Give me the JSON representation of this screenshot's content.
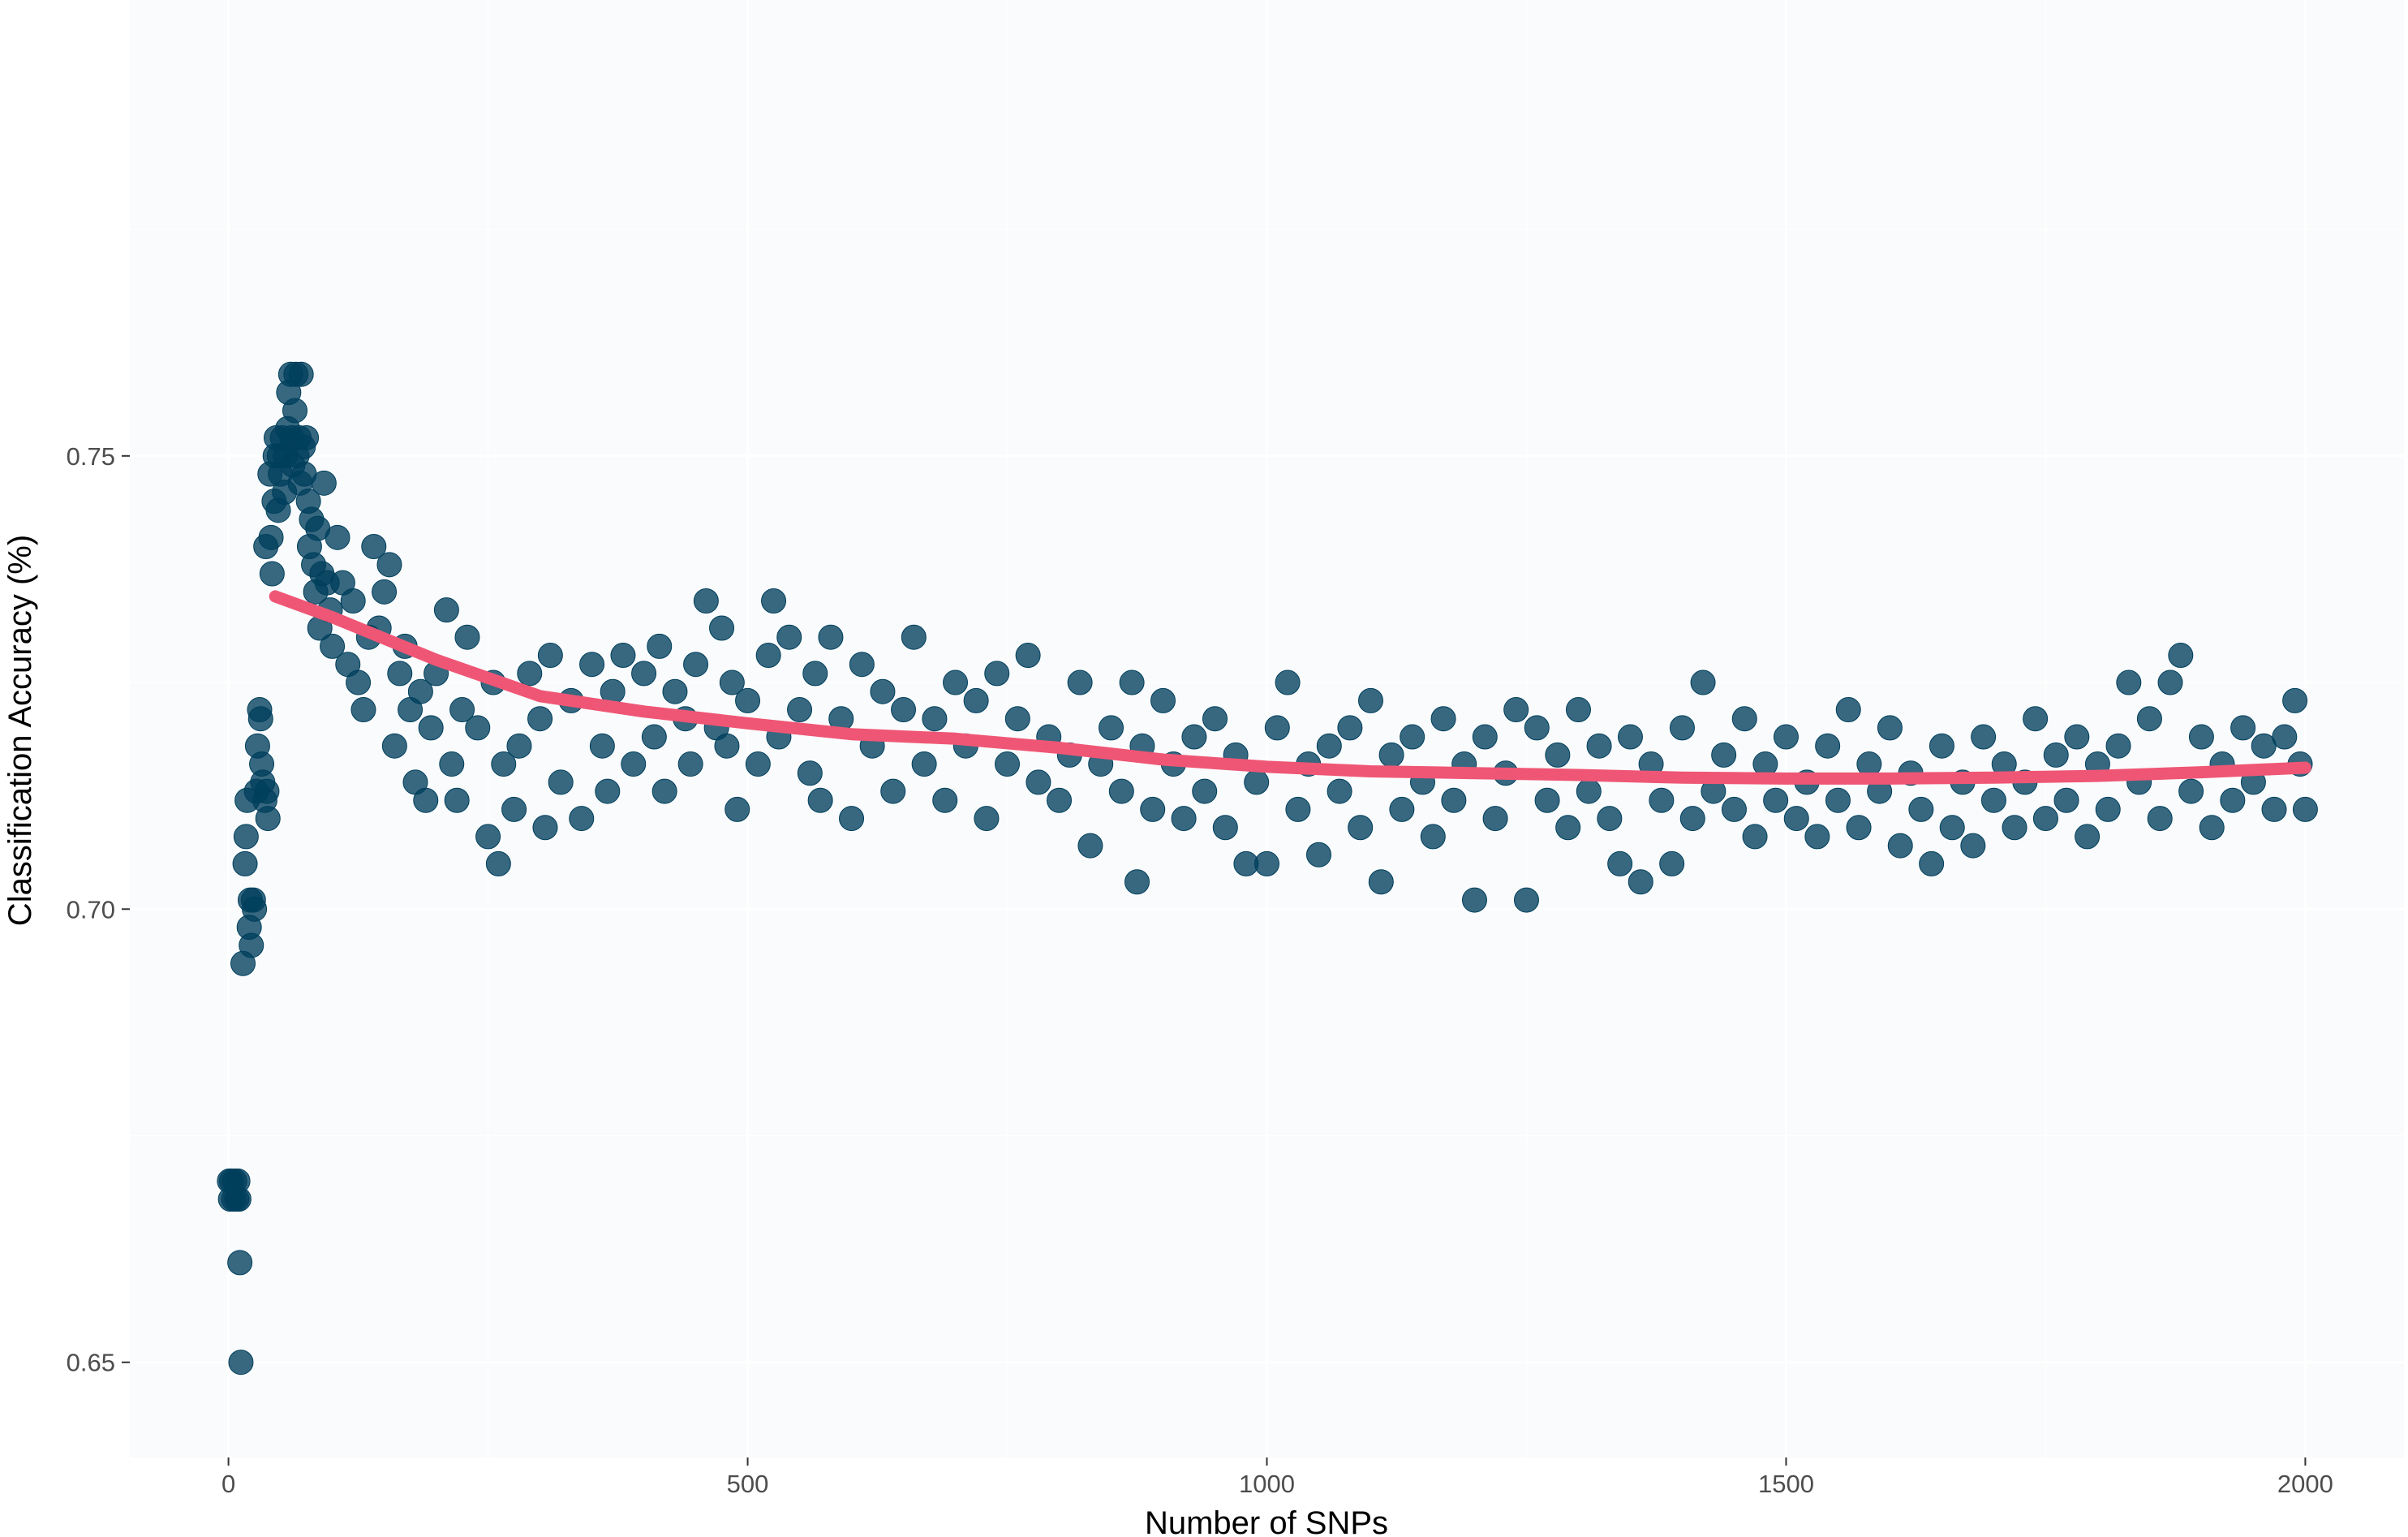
{
  "chart_data": {
    "type": "scatter",
    "title": "",
    "xlabel": "Number of SNPs",
    "ylabel": "Classification Accuracy (%)",
    "xlim": [
      -95,
      2095
    ],
    "ylim": [
      0.6395,
      0.8003
    ],
    "xticks": [
      0,
      500,
      1000,
      1500,
      2000
    ],
    "xtick_labels": [
      "0",
      "500",
      "1000",
      "1500",
      "2000"
    ],
    "yticks": [
      0.65,
      0.7,
      0.75
    ],
    "ytick_labels": [
      "0.65",
      "0.70",
      "0.75"
    ],
    "grid": true,
    "legend": "none",
    "colors": {
      "points": "#003f5c",
      "trend": "#ef5675",
      "panel": "#fafbfc",
      "grid": "#ffffff"
    },
    "series": [
      {
        "kind": "points",
        "points": [
          [
            1,
            0.67
          ],
          [
            2,
            0.668
          ],
          [
            3,
            0.67
          ],
          [
            5,
            0.668
          ],
          [
            6,
            0.67
          ],
          [
            8,
            0.668
          ],
          [
            9,
            0.67
          ],
          [
            10,
            0.668
          ],
          [
            11,
            0.661
          ],
          [
            12,
            0.65
          ],
          [
            14,
            0.694
          ],
          [
            16,
            0.705
          ],
          [
            17,
            0.708
          ],
          [
            18,
            0.712
          ],
          [
            20,
            0.698
          ],
          [
            21,
            0.701
          ],
          [
            22,
            0.696
          ],
          [
            24,
            0.701
          ],
          [
            25,
            0.7
          ],
          [
            27,
            0.713
          ],
          [
            28,
            0.718
          ],
          [
            30,
            0.722
          ],
          [
            31,
            0.721
          ],
          [
            32,
            0.716
          ],
          [
            33,
            0.714
          ],
          [
            35,
            0.712
          ],
          [
            36,
            0.74
          ],
          [
            37,
            0.713
          ],
          [
            38,
            0.71
          ],
          [
            40,
            0.748
          ],
          [
            41,
            0.741
          ],
          [
            42,
            0.737
          ],
          [
            44,
            0.745
          ],
          [
            45,
            0.75
          ],
          [
            46,
            0.752
          ],
          [
            48,
            0.744
          ],
          [
            49,
            0.75
          ],
          [
            50,
            0.748
          ],
          [
            52,
            0.752
          ],
          [
            54,
            0.746
          ],
          [
            55,
            0.75
          ],
          [
            57,
            0.753
          ],
          [
            58,
            0.757
          ],
          [
            60,
            0.759
          ],
          [
            61,
            0.752
          ],
          [
            62,
            0.749
          ],
          [
            64,
            0.755
          ],
          [
            65,
            0.759
          ],
          [
            66,
            0.75
          ],
          [
            68,
            0.752
          ],
          [
            69,
            0.747
          ],
          [
            70,
            0.759
          ],
          [
            72,
            0.751
          ],
          [
            73,
            0.748
          ],
          [
            75,
            0.752
          ],
          [
            77,
            0.745
          ],
          [
            78,
            0.74
          ],
          [
            80,
            0.743
          ],
          [
            82,
            0.738
          ],
          [
            84,
            0.735
          ],
          [
            86,
            0.742
          ],
          [
            88,
            0.731
          ],
          [
            90,
            0.737
          ],
          [
            92,
            0.747
          ],
          [
            95,
            0.736
          ],
          [
            98,
            0.733
          ],
          [
            100,
            0.729
          ],
          [
            105,
            0.741
          ],
          [
            110,
            0.736
          ],
          [
            115,
            0.727
          ],
          [
            120,
            0.734
          ],
          [
            125,
            0.725
          ],
          [
            130,
            0.722
          ],
          [
            135,
            0.73
          ],
          [
            140,
            0.74
          ],
          [
            145,
            0.731
          ],
          [
            150,
            0.735
          ],
          [
            155,
            0.738
          ],
          [
            160,
            0.718
          ],
          [
            165,
            0.726
          ],
          [
            170,
            0.729
          ],
          [
            175,
            0.722
          ],
          [
            180,
            0.714
          ],
          [
            185,
            0.724
          ],
          [
            190,
            0.712
          ],
          [
            195,
            0.72
          ],
          [
            200,
            0.726
          ],
          [
            210,
            0.733
          ],
          [
            215,
            0.716
          ],
          [
            220,
            0.712
          ],
          [
            225,
            0.722
          ],
          [
            230,
            0.73
          ],
          [
            240,
            0.72
          ],
          [
            250,
            0.708
          ],
          [
            255,
            0.725
          ],
          [
            260,
            0.705
          ],
          [
            265,
            0.716
          ],
          [
            275,
            0.711
          ],
          [
            280,
            0.718
          ],
          [
            290,
            0.726
          ],
          [
            300,
            0.721
          ],
          [
            305,
            0.709
          ],
          [
            310,
            0.728
          ],
          [
            320,
            0.714
          ],
          [
            330,
            0.723
          ],
          [
            340,
            0.71
          ],
          [
            350,
            0.727
          ],
          [
            360,
            0.718
          ],
          [
            365,
            0.713
          ],
          [
            370,
            0.724
          ],
          [
            380,
            0.728
          ],
          [
            390,
            0.716
          ],
          [
            400,
            0.726
          ],
          [
            410,
            0.719
          ],
          [
            415,
            0.729
          ],
          [
            420,
            0.713
          ],
          [
            430,
            0.724
          ],
          [
            440,
            0.721
          ],
          [
            445,
            0.716
          ],
          [
            450,
            0.727
          ],
          [
            460,
            0.734
          ],
          [
            470,
            0.72
          ],
          [
            475,
            0.731
          ],
          [
            480,
            0.718
          ],
          [
            485,
            0.725
          ],
          [
            490,
            0.711
          ],
          [
            500,
            0.723
          ],
          [
            510,
            0.716
          ],
          [
            520,
            0.728
          ],
          [
            525,
            0.734
          ],
          [
            530,
            0.719
          ],
          [
            540,
            0.73
          ],
          [
            550,
            0.722
          ],
          [
            560,
            0.715
          ],
          [
            565,
            0.726
          ],
          [
            570,
            0.712
          ],
          [
            580,
            0.73
          ],
          [
            590,
            0.721
          ],
          [
            600,
            0.71
          ],
          [
            610,
            0.727
          ],
          [
            620,
            0.718
          ],
          [
            630,
            0.724
          ],
          [
            640,
            0.713
          ],
          [
            650,
            0.722
          ],
          [
            660,
            0.73
          ],
          [
            670,
            0.716
          ],
          [
            680,
            0.721
          ],
          [
            690,
            0.712
          ],
          [
            700,
            0.725
          ],
          [
            710,
            0.718
          ],
          [
            720,
            0.723
          ],
          [
            730,
            0.71
          ],
          [
            740,
            0.726
          ],
          [
            750,
            0.716
          ],
          [
            760,
            0.721
          ],
          [
            770,
            0.728
          ],
          [
            780,
            0.714
          ],
          [
            790,
            0.719
          ],
          [
            800,
            0.712
          ],
          [
            810,
            0.717
          ],
          [
            820,
            0.725
          ],
          [
            830,
            0.707
          ],
          [
            840,
            0.716
          ],
          [
            850,
            0.72
          ],
          [
            860,
            0.713
          ],
          [
            870,
            0.725
          ],
          [
            875,
            0.703
          ],
          [
            880,
            0.718
          ],
          [
            890,
            0.711
          ],
          [
            900,
            0.723
          ],
          [
            910,
            0.716
          ],
          [
            920,
            0.71
          ],
          [
            930,
            0.719
          ],
          [
            940,
            0.713
          ],
          [
            950,
            0.721
          ],
          [
            960,
            0.709
          ],
          [
            970,
            0.717
          ],
          [
            980,
            0.705
          ],
          [
            990,
            0.714
          ],
          [
            1000,
            0.705
          ],
          [
            1010,
            0.72
          ],
          [
            1020,
            0.725
          ],
          [
            1030,
            0.711
          ],
          [
            1040,
            0.716
          ],
          [
            1050,
            0.706
          ],
          [
            1060,
            0.718
          ],
          [
            1070,
            0.713
          ],
          [
            1080,
            0.72
          ],
          [
            1090,
            0.709
          ],
          [
            1100,
            0.723
          ],
          [
            1110,
            0.703
          ],
          [
            1120,
            0.717
          ],
          [
            1130,
            0.711
          ],
          [
            1140,
            0.719
          ],
          [
            1150,
            0.714
          ],
          [
            1160,
            0.708
          ],
          [
            1170,
            0.721
          ],
          [
            1180,
            0.712
          ],
          [
            1190,
            0.716
          ],
          [
            1200,
            0.701
          ],
          [
            1210,
            0.719
          ],
          [
            1220,
            0.71
          ],
          [
            1230,
            0.715
          ],
          [
            1240,
            0.722
          ],
          [
            1250,
            0.701
          ],
          [
            1260,
            0.72
          ],
          [
            1270,
            0.712
          ],
          [
            1280,
            0.717
          ],
          [
            1290,
            0.709
          ],
          [
            1300,
            0.722
          ],
          [
            1310,
            0.713
          ],
          [
            1320,
            0.718
          ],
          [
            1330,
            0.71
          ],
          [
            1340,
            0.705
          ],
          [
            1350,
            0.719
          ],
          [
            1360,
            0.703
          ],
          [
            1370,
            0.716
          ],
          [
            1380,
            0.712
          ],
          [
            1390,
            0.705
          ],
          [
            1400,
            0.72
          ],
          [
            1410,
            0.71
          ],
          [
            1420,
            0.725
          ],
          [
            1430,
            0.713
          ],
          [
            1440,
            0.717
          ],
          [
            1450,
            0.711
          ],
          [
            1460,
            0.721
          ],
          [
            1470,
            0.708
          ],
          [
            1480,
            0.716
          ],
          [
            1490,
            0.712
          ],
          [
            1500,
            0.719
          ],
          [
            1510,
            0.71
          ],
          [
            1520,
            0.714
          ],
          [
            1530,
            0.708
          ],
          [
            1540,
            0.718
          ],
          [
            1550,
            0.712
          ],
          [
            1560,
            0.722
          ],
          [
            1570,
            0.709
          ],
          [
            1580,
            0.716
          ],
          [
            1590,
            0.713
          ],
          [
            1600,
            0.72
          ],
          [
            1610,
            0.707
          ],
          [
            1620,
            0.715
          ],
          [
            1630,
            0.711
          ],
          [
            1640,
            0.705
          ],
          [
            1650,
            0.718
          ],
          [
            1660,
            0.709
          ],
          [
            1670,
            0.714
          ],
          [
            1680,
            0.707
          ],
          [
            1690,
            0.719
          ],
          [
            1700,
            0.712
          ],
          [
            1710,
            0.716
          ],
          [
            1720,
            0.709
          ],
          [
            1730,
            0.714
          ],
          [
            1740,
            0.721
          ],
          [
            1750,
            0.71
          ],
          [
            1760,
            0.717
          ],
          [
            1770,
            0.712
          ],
          [
            1780,
            0.719
          ],
          [
            1790,
            0.708
          ],
          [
            1800,
            0.716
          ],
          [
            1810,
            0.711
          ],
          [
            1820,
            0.718
          ],
          [
            1830,
            0.725
          ],
          [
            1840,
            0.714
          ],
          [
            1850,
            0.721
          ],
          [
            1860,
            0.71
          ],
          [
            1870,
            0.725
          ],
          [
            1880,
            0.728
          ],
          [
            1890,
            0.713
          ],
          [
            1900,
            0.719
          ],
          [
            1910,
            0.709
          ],
          [
            1920,
            0.716
          ],
          [
            1930,
            0.712
          ],
          [
            1940,
            0.72
          ],
          [
            1950,
            0.714
          ],
          [
            1960,
            0.718
          ],
          [
            1970,
            0.711
          ],
          [
            1980,
            0.719
          ],
          [
            1990,
            0.723
          ],
          [
            1995,
            0.716
          ],
          [
            2000,
            0.711
          ]
        ]
      },
      {
        "kind": "trend",
        "points": [
          [
            45,
            0.7345
          ],
          [
            100,
            0.7322
          ],
          [
            200,
            0.7275
          ],
          [
            300,
            0.7235
          ],
          [
            400,
            0.7218
          ],
          [
            500,
            0.7205
          ],
          [
            600,
            0.7193
          ],
          [
            700,
            0.7188
          ],
          [
            800,
            0.7178
          ],
          [
            900,
            0.7165
          ],
          [
            1000,
            0.7157
          ],
          [
            1100,
            0.7152
          ],
          [
            1200,
            0.715
          ],
          [
            1300,
            0.7148
          ],
          [
            1400,
            0.7145
          ],
          [
            1500,
            0.7144
          ],
          [
            1600,
            0.7144
          ],
          [
            1700,
            0.7145
          ],
          [
            1800,
            0.7147
          ],
          [
            1900,
            0.7151
          ],
          [
            2000,
            0.7156
          ]
        ]
      }
    ]
  }
}
